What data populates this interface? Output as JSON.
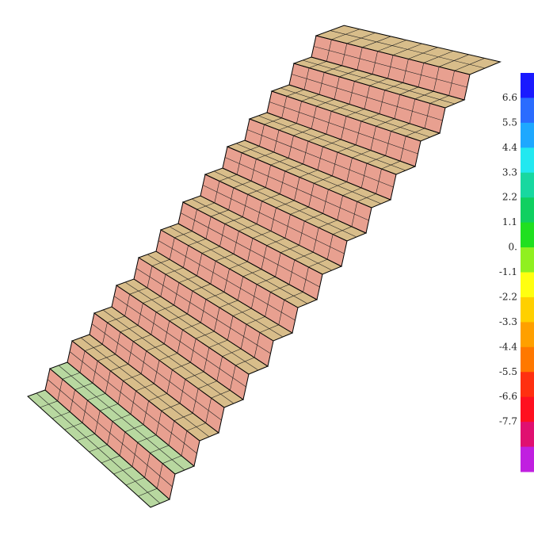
{
  "legend": {
    "labels": [
      "6.6",
      "5.5",
      "4.4",
      "3.3",
      "2.2",
      "1.1",
      "0.",
      "-1.1",
      "-2.2",
      "-3.3",
      "-4.4",
      "-5.5",
      "-6.6",
      "-7.7"
    ],
    "colors": [
      "#1a1aff",
      "#2a6cff",
      "#1ea8ff",
      "#22e8f0",
      "#18d8a0",
      "#10d060",
      "#20e020",
      "#90f020",
      "#ffff10",
      "#ffd000",
      "#ffa000",
      "#ff7800",
      "#ff3010",
      "#ff1020",
      "#e01070",
      "#c020e0"
    ]
  }
}
